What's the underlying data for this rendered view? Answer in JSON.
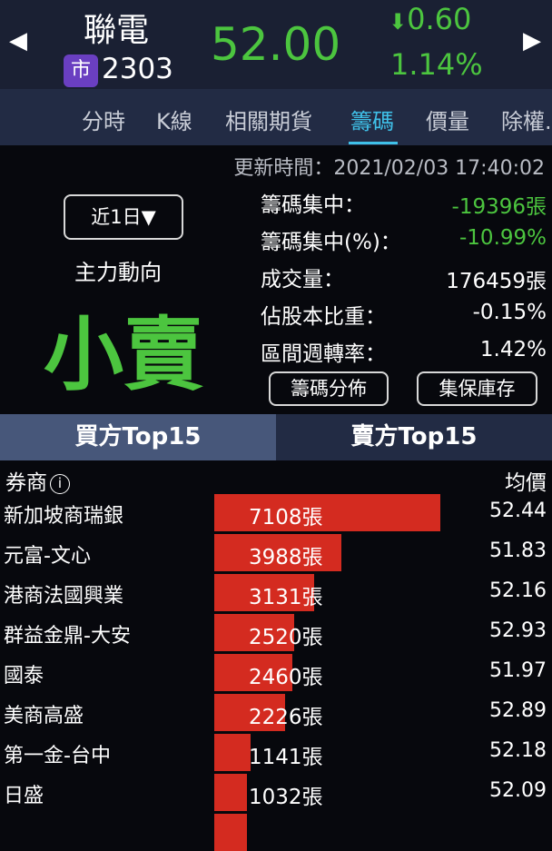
{
  "header": {
    "name": "聯電",
    "market_badge": "市",
    "code": "2303",
    "price": "52.00",
    "change": "0.60",
    "change_pct": "1.14%",
    "change_dir": "down",
    "color_down": "#4cc53f"
  },
  "tabs": [
    {
      "label": "分時"
    },
    {
      "label": "K線"
    },
    {
      "label": "相關期貨"
    },
    {
      "label": "籌碼",
      "active": true
    },
    {
      "label": "價量"
    },
    {
      "label": "除權."
    }
  ],
  "info": {
    "updated": "更新時間：2021/02/03 17:40:02",
    "range": "近1日▼",
    "main_force_label": "主力動向",
    "main_force_value": "小賣",
    "stats": [
      {
        "label": "籌碼集中：",
        "value": "-19396張",
        "color": "#4cc53f"
      },
      {
        "label": "籌碼集中(%)：",
        "value": "-10.99%",
        "color": "#4cc53f"
      },
      {
        "label": "成交量：",
        "value": "176459張",
        "color": "#ffffff"
      },
      {
        "label": "佔股本比重：",
        "value": "-0.15%",
        "color": "#ffffff"
      },
      {
        "label": "區間週轉率：",
        "value": "1.42%",
        "color": "#ffffff"
      }
    ],
    "btn_distribution": "籌碼分佈",
    "btn_custody": "集保庫存"
  },
  "top_tabs": {
    "buy": "買方Top15",
    "sell": "賣方Top15",
    "active": "buy"
  },
  "table": {
    "col_broker": "券商",
    "col_avg": "均價",
    "bar_color": "#d42b20",
    "rows": [
      {
        "broker": "新加坡商瑞銀",
        "volume": 7108,
        "volume_label": "7108張",
        "avg": "52.44"
      },
      {
        "broker": "元富-文心",
        "volume": 3988,
        "volume_label": "3988張",
        "avg": "51.83"
      },
      {
        "broker": "港商法國興業",
        "volume": 3131,
        "volume_label": "3131張",
        "avg": "52.16"
      },
      {
        "broker": "群益金鼎-大安",
        "volume": 2520,
        "volume_label": "2520張",
        "avg": "52.93"
      },
      {
        "broker": "國泰",
        "volume": 2460,
        "volume_label": "2460張",
        "avg": "51.97"
      },
      {
        "broker": "美商高盛",
        "volume": 2226,
        "volume_label": "2226張",
        "avg": "52.89"
      },
      {
        "broker": "第一金-台中",
        "volume": 1141,
        "volume_label": "1141張",
        "avg": "52.18"
      },
      {
        "broker": "日盛",
        "volume": 1032,
        "volume_label": "1032張",
        "avg": "52.09"
      }
    ]
  }
}
